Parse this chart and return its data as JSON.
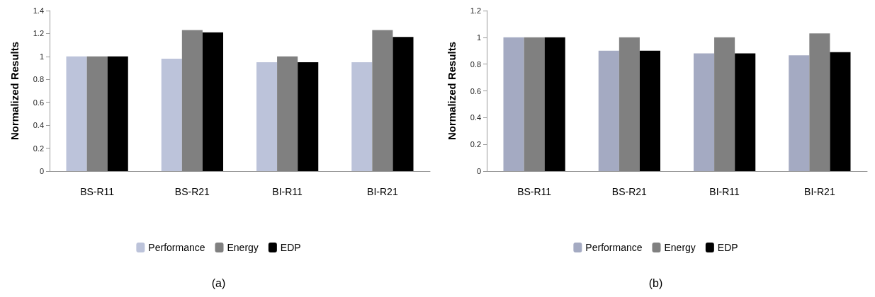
{
  "chart_data": [
    {
      "type": "bar",
      "ylabel": "Normalized Results",
      "categories": [
        "BS-R11",
        "BS-R21",
        "BI-R11",
        "BI-R21"
      ],
      "series": [
        {
          "name": "Performance",
          "color": "#bcc3da",
          "values": [
            1.0,
            0.98,
            0.95,
            0.95
          ]
        },
        {
          "name": "Energy",
          "color": "#808080",
          "values": [
            1.0,
            1.23,
            1.0,
            1.23
          ]
        },
        {
          "name": "EDP",
          "color": "#000000",
          "values": [
            1.0,
            1.21,
            0.95,
            1.17
          ]
        }
      ],
      "ylim": [
        0,
        1.4
      ],
      "yticks": [
        0,
        0.2,
        0.4,
        0.6,
        0.8,
        1,
        1.2,
        1.4
      ],
      "grid": false,
      "legend": "bottom",
      "annotations": [
        "(a)"
      ]
    },
    {
      "type": "bar",
      "ylabel": "Normalized Results",
      "categories": [
        "BS-R11",
        "BS-R21",
        "BI-R11",
        "BI-R21"
      ],
      "series": [
        {
          "name": "Performance",
          "color": "#a4aac2",
          "values": [
            1.0,
            0.9,
            0.88,
            0.865
          ]
        },
        {
          "name": "Energy",
          "color": "#808080",
          "values": [
            1.0,
            1.0,
            1.0,
            1.03
          ]
        },
        {
          "name": "EDP",
          "color": "#000000",
          "values": [
            1.0,
            0.9,
            0.88,
            0.89
          ]
        }
      ],
      "ylim": [
        0,
        1.2
      ],
      "yticks": [
        0,
        0.2,
        0.4,
        0.6,
        0.8,
        1,
        1.2
      ],
      "grid": false,
      "legend": "bottom",
      "annotations": [
        "(b)"
      ]
    }
  ]
}
